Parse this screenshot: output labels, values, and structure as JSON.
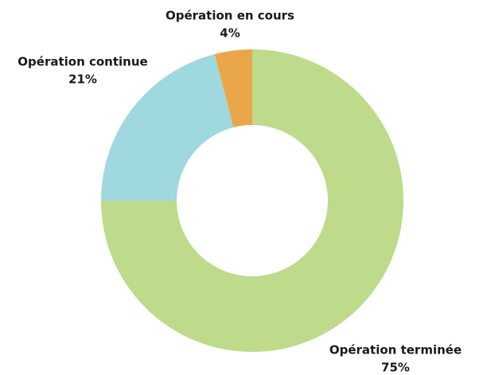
{
  "chart_data": {
    "type": "pie",
    "categories": [
      "Opération terminée",
      "Opération continue",
      "Opération en cours"
    ],
    "values": [
      75,
      21,
      4
    ],
    "value_labels": [
      "75%",
      "21%",
      "4%"
    ],
    "colors": [
      "#bddb8a",
      "#a0d8e0",
      "#e9a74a"
    ],
    "donut": true
  }
}
